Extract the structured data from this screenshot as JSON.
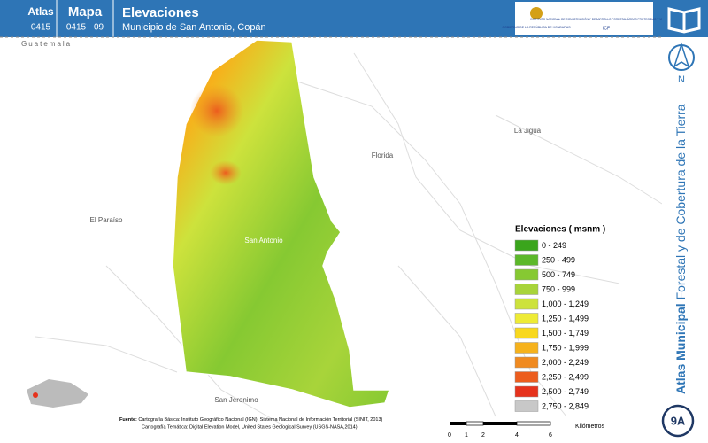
{
  "header": {
    "atlas_label": "Atlas",
    "atlas_code": "0415",
    "mapa_label": "Mapa",
    "mapa_code": "0415 - 09",
    "title": "Elevaciones",
    "subtitle": "Municipio de San Antonio, Copán",
    "logo_gov": "GOBIERNO DE LA REPÚBLICA DE HONDURAS",
    "logo_icf": "INSTITUTO NACIONAL DE CONSERVACIÓN Y DESARROLLO FORESTAL ÁREAS PROTEGIDAS Y VIDA SILVESTRE",
    "logo_icf_short": "ICF"
  },
  "sidebar": {
    "north": "N",
    "series_bold": "Atlas Municipal",
    "series_rest": "Forestal y de Cobertura de la Tierra",
    "badge": "9A"
  },
  "places": [
    {
      "name": "Guatemala"
    },
    {
      "name": "Florida"
    },
    {
      "name": "La Jigua"
    },
    {
      "name": "El Paraíso"
    },
    {
      "name": "San Antonio"
    },
    {
      "name": "San Jeronimo"
    }
  ],
  "legend": {
    "title": "Elevaciones ( msnm )",
    "items": [
      {
        "label": "0 - 249",
        "color": "#3aa51c"
      },
      {
        "label": "250 - 499",
        "color": "#5cb82a"
      },
      {
        "label": "500 - 749",
        "color": "#86c932"
      },
      {
        "label": "750 - 999",
        "color": "#a8d43a"
      },
      {
        "label": "1,000 - 1,249",
        "color": "#cde23c"
      },
      {
        "label": "1,250 - 1,499",
        "color": "#eeeb35"
      },
      {
        "label": "1,500 - 1,749",
        "color": "#f8d81e"
      },
      {
        "label": "1,750 - 1,999",
        "color": "#f6b21c"
      },
      {
        "label": "2,000 - 2,249",
        "color": "#f08a20"
      },
      {
        "label": "2,250 - 2,499",
        "color": "#ec5d1e"
      },
      {
        "label": "2,500 - 2,749",
        "color": "#e6321c"
      },
      {
        "label": "2,750 - 2,849",
        "color": "#c8c8c8"
      }
    ]
  },
  "scale": {
    "ticks": [
      "0",
      "1",
      "2",
      "4",
      "6"
    ],
    "unit": "Kilómetros"
  },
  "source": {
    "label": "Fuente:",
    "line1": "Cartografía Básica: Instituto Geográfico Nacional (IGN), Sistema Nacional de Información Territorial (SINIT, 2013)",
    "line2": "Cartografía Temática: Digital Elevation Model, United States Geological Survey (USGS-NASA,2014)"
  }
}
